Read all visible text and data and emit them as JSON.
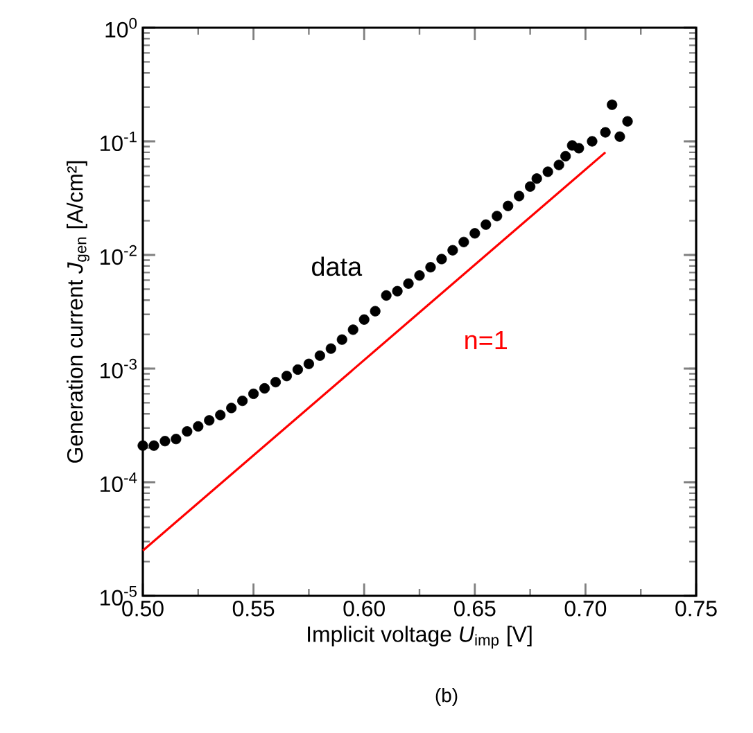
{
  "chart_data": {
    "type": "scatter",
    "xlabel": "Implicit voltage *U*$_{imp}$ [V]",
    "ylabel": "Generation current *J*$_{gen}$ [A/cm²]",
    "annotations": [
      "(b)"
    ],
    "log": "y",
    "grid": false,
    "legend": false,
    "xlim": [
      0.5,
      0.75
    ],
    "xticks": [
      {
        "value": 0.5,
        "label": "0.50"
      },
      {
        "value": 0.55,
        "label": "0.55"
      },
      {
        "value": 0.6,
        "label": "0.60"
      },
      {
        "value": 0.65,
        "label": "0.65"
      },
      {
        "value": 0.7,
        "label": "0.70"
      },
      {
        "value": 0.75,
        "label": "0.75"
      }
    ],
    "ylim": [
      1e-05,
      1
    ],
    "yticks": [
      {
        "value": 1e-05,
        "label": "10$^{-5}$"
      },
      {
        "value": 0.0001,
        "label": "10$^{-4}$"
      },
      {
        "value": 0.001,
        "label": "10$^{-3}$"
      },
      {
        "value": 0.01,
        "label": "10$^{-2}$"
      },
      {
        "value": 0.1,
        "label": "10$^{-1}$"
      },
      {
        "value": 1,
        "label": "10$^{0}$"
      }
    ],
    "series": [
      {
        "name": "data",
        "marker": "circle",
        "color": "#000000",
        "x": [
          0.5,
          0.505,
          0.51,
          0.515,
          0.52,
          0.525,
          0.53,
          0.535,
          0.54,
          0.545,
          0.55,
          0.555,
          0.56,
          0.565,
          0.57,
          0.575,
          0.58,
          0.585,
          0.59,
          0.595,
          0.6,
          0.605,
          0.61,
          0.615,
          0.62,
          0.625,
          0.63,
          0.635,
          0.64,
          0.645,
          0.65,
          0.655,
          0.66,
          0.665,
          0.67,
          0.675,
          0.678,
          0.683,
          0.688,
          0.691,
          0.694,
          0.697,
          0.703,
          0.709,
          0.712,
          0.7155,
          0.719
        ],
        "values": [
          0.00021,
          0.00021,
          0.00023,
          0.00024,
          0.00028,
          0.00031,
          0.00035,
          0.00039,
          0.00045,
          0.00052,
          0.0006,
          0.00067,
          0.00076,
          0.00086,
          0.00098,
          0.0011,
          0.0013,
          0.0015,
          0.0018,
          0.0022,
          0.0027,
          0.0032,
          0.0044,
          0.0048,
          0.0056,
          0.0066,
          0.0078,
          0.0092,
          0.011,
          0.013,
          0.0155,
          0.0185,
          0.022,
          0.027,
          0.033,
          0.04,
          0.047,
          0.054,
          0.062,
          0.074,
          0.092,
          0.087,
          0.1,
          0.12,
          0.21,
          0.11,
          0.15
        ]
      },
      {
        "name": "n=1",
        "type": "line",
        "line_style": "solid",
        "color": "#ff0000",
        "x": [
          0.5,
          0.709
        ],
        "values": [
          2.5e-05,
          0.08
        ]
      }
    ]
  }
}
